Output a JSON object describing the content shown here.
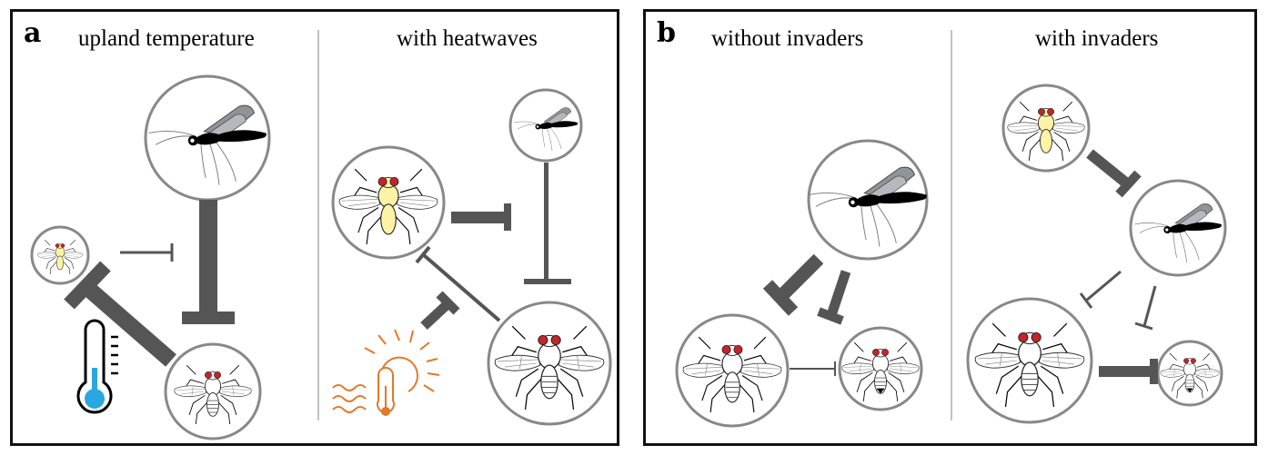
{
  "panel_a": {
    "label": "a",
    "left_title": "upland temperature",
    "right_title": "with heatwaves"
  },
  "panel_b": {
    "label": "b",
    "left_title": "without invaders",
    "right_title": "with invaders"
  },
  "colors": {
    "arrow": "#555555",
    "circle_stroke": "#888888",
    "frame": "#111111",
    "wasp_wing": "#8f9499",
    "fly_eye": "#c0262a",
    "invader_body": "#fdf3a6",
    "thermometer_bulb": "#2aa6e0",
    "heat_icon": "#e5782a"
  },
  "icons": [
    "parasitoid-wasp-icon",
    "invader-fly-icon",
    "native-fly-icon",
    "thermometer-icon",
    "heatwave-icon"
  ]
}
